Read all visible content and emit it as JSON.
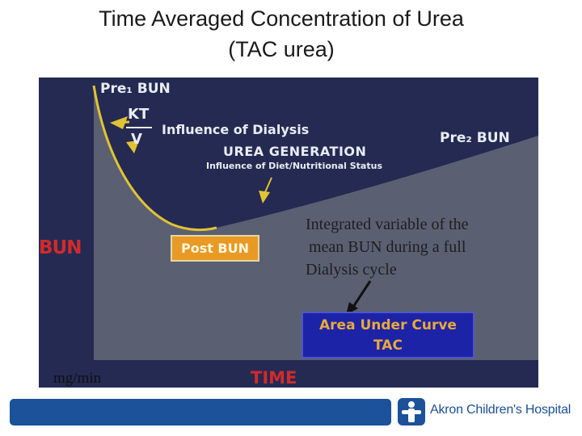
{
  "title": {
    "line1": "Time Averaged Concentration of Urea",
    "line2": "(TAC urea)"
  },
  "diagram": {
    "pre1_bun": "Pre₁ BUN",
    "kt": "KT",
    "v": "V",
    "influence_dialysis": "Influence of Dialysis",
    "urea_generation": "UREA GENERATION",
    "influence_diet": "Influence of Diet/Nutritional Status",
    "pre2_bun": "Pre₂ BUN",
    "y_label": "BUN",
    "x_label": "TIME",
    "post_bun": "Post BUN",
    "auc_line1": "Area Under Curve",
    "auc_line2": "TAC"
  },
  "annotation": {
    "line1": "Integrated variable of the",
    "line2": "mean BUN during a full",
    "line3": "Dialysis cycle"
  },
  "unit_label": "mg/min",
  "footer": {
    "logo_text": "Akron Children's Hospital"
  },
  "colors": {
    "slide_background": "#252a53",
    "curve_area": "#5a6072",
    "curve_line": "#e2c332",
    "axis_label_red": "#d22a2a",
    "post_bun_box": "#e89a24",
    "auc_box": "#1d23a6",
    "brand_blue": "#1b5299"
  }
}
